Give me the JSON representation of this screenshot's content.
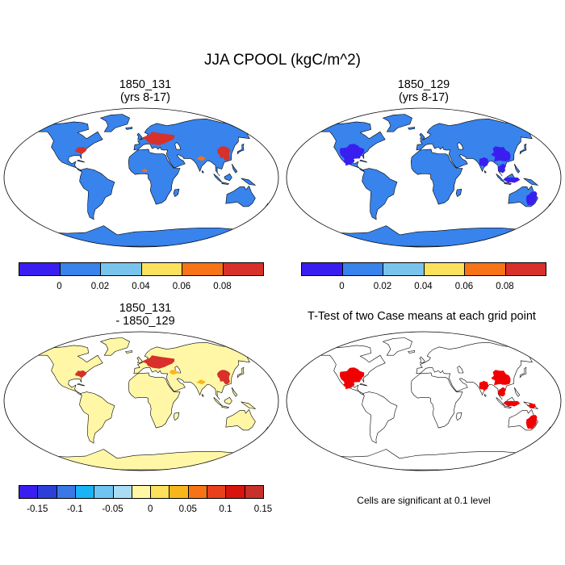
{
  "title": "JJA CPOOL (kgC/m^2)",
  "panels": [
    {
      "id": "p1",
      "title_line1": "1850_131",
      "title_line2": "(yrs 8-17)"
    },
    {
      "id": "p2",
      "title_line1": "1850_129",
      "title_line2": "(yrs 8-17)"
    },
    {
      "id": "p3",
      "title_line1": "1850_131",
      "title_line2": "- 1850_129"
    },
    {
      "id": "p4",
      "title_line1": "T-Test of two Case means at each grid point",
      "title_line2": ""
    }
  ],
  "colorbars": [
    {
      "id": "cb1",
      "colors": [
        "#3a1ef0",
        "#3883ec",
        "#79c4ec",
        "#fbe15c",
        "#f67316",
        "#d8302a"
      ],
      "labels": [
        "0",
        "0.02",
        "0.04",
        "0.06",
        "0.08"
      ]
    },
    {
      "id": "cb2",
      "colors": [
        "#3a1ef0",
        "#3883ec",
        "#79c4ec",
        "#fbe15c",
        "#f67316",
        "#d8302a"
      ],
      "labels": [
        "0",
        "0.02",
        "0.04",
        "0.06",
        "0.08"
      ]
    },
    {
      "id": "cb3",
      "colors": [
        "#3a1ef0",
        "#2a40d8",
        "#3a78e6",
        "#19b3f6",
        "#6fc4f1",
        "#aadcf4",
        "#fff7a6",
        "#fbe15c",
        "#f7b71c",
        "#f67316",
        "#e8401c",
        "#d8140f",
        "#c8302c"
      ],
      "labels": [
        "-0.15",
        "-0.1",
        "-0.05",
        "0",
        "0.05",
        "0.1",
        "0.15"
      ]
    }
  ],
  "map_colors": {
    "land_low": "#3883ec",
    "land_min": "#3a1ef0",
    "land_high": "#d8302a",
    "land_mid": "#f67316",
    "diff_land": "#fff7a6",
    "diff_pos": "#d8302a",
    "diff_mid": "#f7b71c",
    "sig": "#f00000",
    "ocean": "#ffffff"
  },
  "significance_note": "Cells are significant at 0.1 level"
}
